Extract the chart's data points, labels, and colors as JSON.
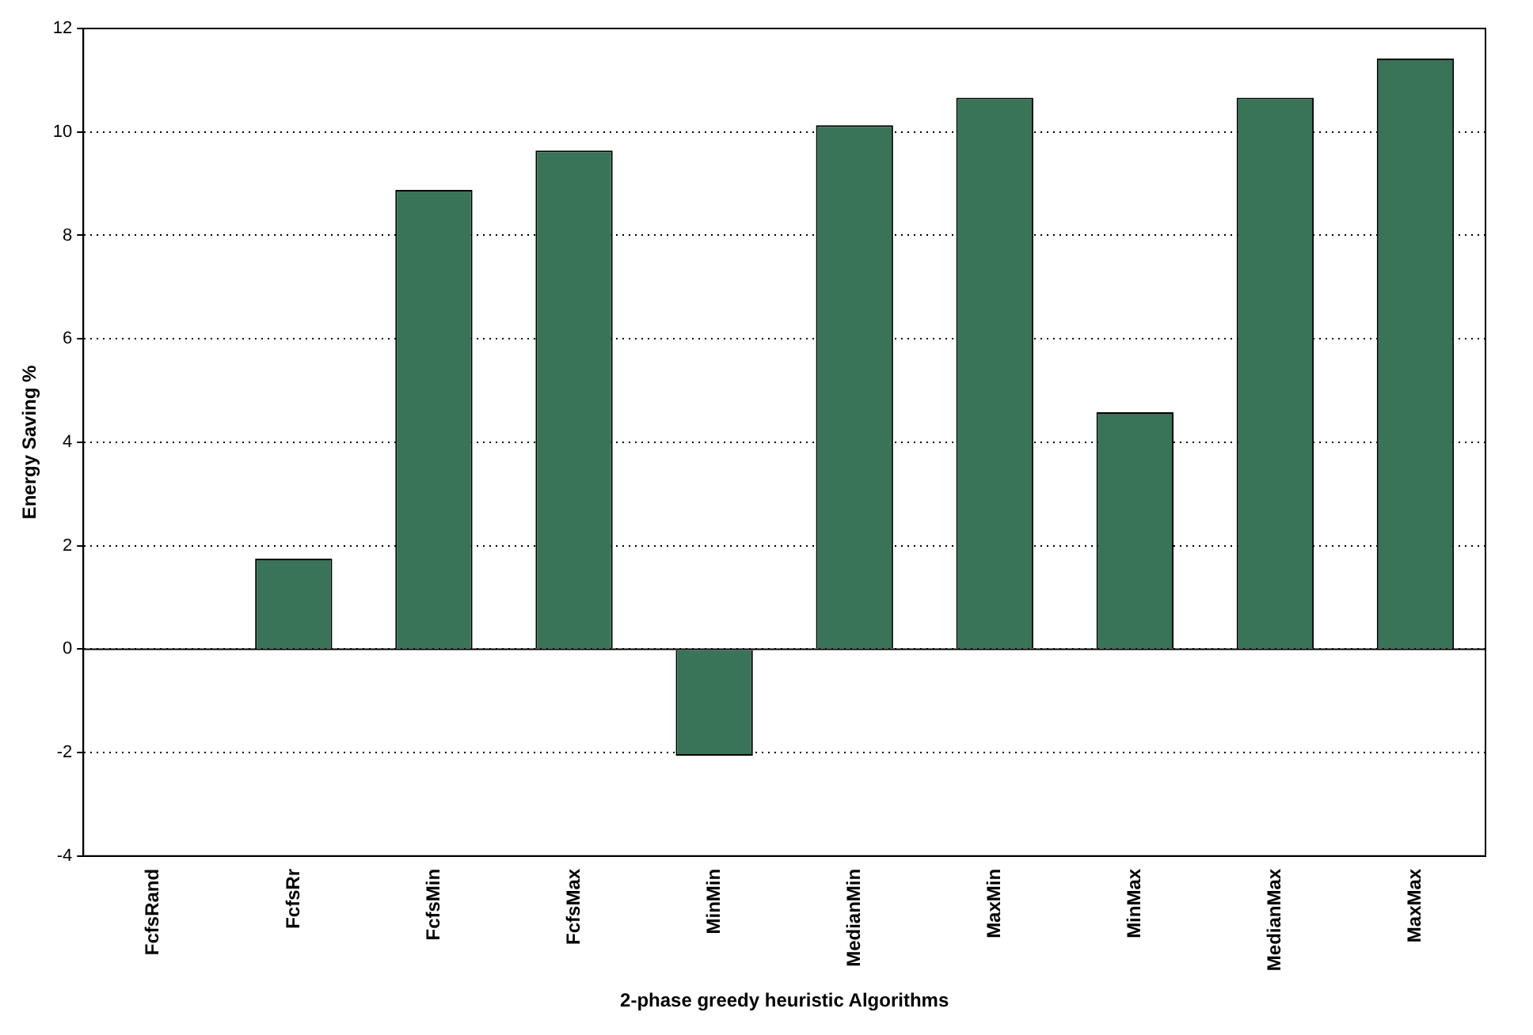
{
  "chart_data": {
    "type": "bar",
    "xlabel": "2-phase greedy heuristic Algorithms",
    "ylabel": "Energy Saving %",
    "categories": [
      "FcfsRand",
      "FcfsRr",
      "FcfsMin",
      "FcfsMax",
      "MinMin",
      "MedianMin",
      "MaxMin",
      "MinMax",
      "MedianMax",
      "MaxMax"
    ],
    "values": [
      0,
      1.75,
      8.88,
      9.64,
      -2.06,
      10.13,
      10.66,
      4.58,
      10.66,
      11.42
    ],
    "color": "#3a7458",
    "ylim": [
      -4,
      12
    ],
    "yticks": [
      -4,
      -2,
      0,
      2,
      4,
      6,
      8,
      10,
      12
    ],
    "grid": "y",
    "legend": false
  }
}
